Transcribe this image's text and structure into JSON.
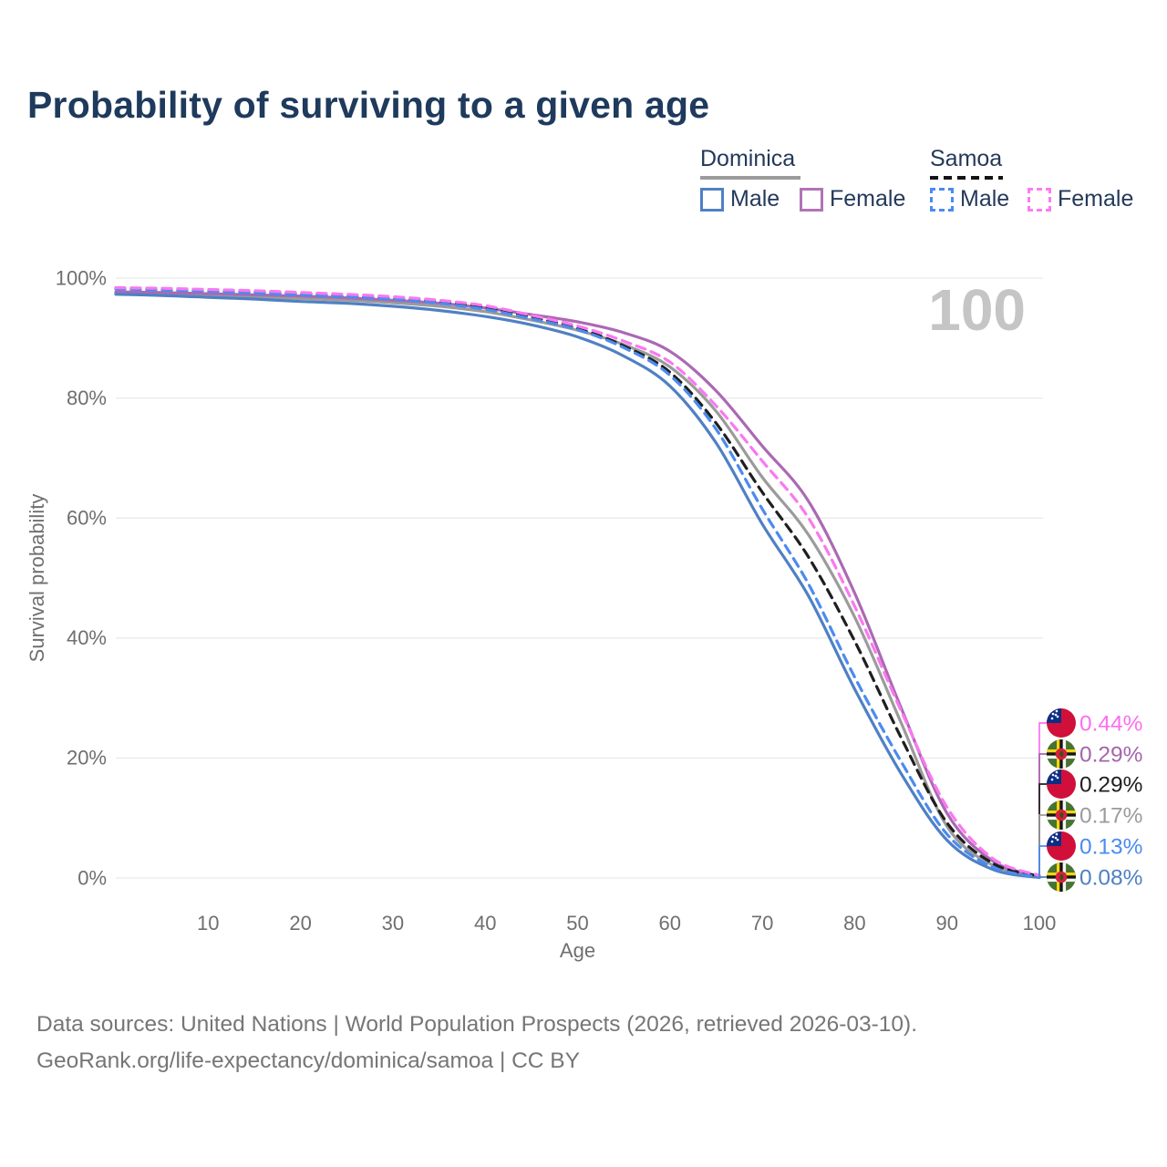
{
  "title": "Probability of surviving to a given age",
  "legend": {
    "groups": [
      {
        "label": "Dominica",
        "line_style": "solid",
        "underline_color": "#9b9b9b",
        "items": [
          {
            "label": "Male",
            "color": "#4f80c4",
            "dash": false
          },
          {
            "label": "Female",
            "color": "#b173b6",
            "dash": false
          }
        ]
      },
      {
        "label": "Samoa",
        "line_style": "dashed",
        "underline_color": "#141414",
        "items": [
          {
            "label": "Male",
            "color": "#4b8bf0",
            "dash": true
          },
          {
            "label": "Female",
            "color": "#fb7cf0",
            "dash": true
          }
        ]
      }
    ]
  },
  "chart_data": {
    "type": "line",
    "title": "Probability of surviving to a given age",
    "xlabel": "Age",
    "ylabel": "Survival probability",
    "xlim": [
      0,
      100
    ],
    "ylim": [
      0,
      100
    ],
    "grid": "horizontal",
    "x_ticks": [
      10,
      20,
      30,
      40,
      50,
      60,
      70,
      80,
      90,
      100
    ],
    "y_ticks": [
      "0%",
      "20%",
      "40%",
      "60%",
      "80%",
      "100%"
    ],
    "age_highlight": "100",
    "x": [
      0,
      5,
      10,
      15,
      20,
      25,
      30,
      35,
      40,
      45,
      50,
      55,
      60,
      65,
      70,
      75,
      80,
      85,
      90,
      95,
      100
    ],
    "series": [
      {
        "name": "Dominica",
        "color": "#9b9b9b",
        "dash": false,
        "values": [
          97.5,
          97.3,
          97.1,
          96.9,
          96.6,
          96.3,
          95.9,
          95.3,
          94.4,
          93.0,
          91.3,
          88.9,
          85.2,
          77.8,
          66.8,
          57.2,
          43.5,
          26.0,
          8.6,
          2.1,
          0.17
        ]
      },
      {
        "name": "Dominica Female",
        "color": "#ab69b3",
        "dash": false,
        "values": [
          97.7,
          97.6,
          97.4,
          97.2,
          97.0,
          96.7,
          96.3,
          95.8,
          95.0,
          93.9,
          92.7,
          90.9,
          87.8,
          81.2,
          72.0,
          62.8,
          47.5,
          28.5,
          10.8,
          2.8,
          0.29
        ]
      },
      {
        "name": "Dominica Male",
        "color": "#4f80c4",
        "dash": false,
        "values": [
          97.3,
          97.1,
          96.8,
          96.5,
          96.1,
          95.8,
          95.3,
          94.6,
          93.6,
          92.2,
          90.2,
          87.0,
          82.0,
          72.5,
          59.0,
          47.0,
          31.5,
          17.5,
          6.3,
          1.4,
          0.08
        ]
      },
      {
        "name": "Samoa",
        "color": "#1f1f1f",
        "dash": true,
        "values": [
          98.3,
          98.1,
          97.9,
          97.7,
          97.4,
          97.0,
          96.6,
          96.0,
          95.1,
          93.5,
          91.6,
          88.7,
          84.3,
          75.8,
          64.3,
          53.5,
          39.5,
          23.5,
          9.2,
          2.4,
          0.29
        ]
      },
      {
        "name": "Samoa Male",
        "color": "#4b8bf0",
        "dash": true,
        "values": [
          98.2,
          98.0,
          97.8,
          97.5,
          97.2,
          96.9,
          96.5,
          95.8,
          94.8,
          93.2,
          91.4,
          88.4,
          83.8,
          74.8,
          61.5,
          49.0,
          33.5,
          19.5,
          7.3,
          1.8,
          0.13
        ]
      },
      {
        "name": "Samoa Female",
        "color": "#fa78f0",
        "dash": true,
        "values": [
          98.4,
          98.3,
          98.1,
          97.9,
          97.6,
          97.3,
          96.9,
          96.3,
          95.4,
          93.8,
          92.0,
          89.5,
          86.0,
          78.7,
          69.5,
          60.0,
          45.3,
          28.0,
          11.8,
          3.2,
          0.44
        ]
      }
    ],
    "end_labels": [
      {
        "flag": "samoa",
        "text": "0.44%",
        "color": "#fb6ef2",
        "series": "Samoa Female"
      },
      {
        "flag": "dominica",
        "text": "0.29%",
        "color": "#a465ab",
        "series": "Dominica Female"
      },
      {
        "flag": "samoa",
        "text": "0.29%",
        "color": "#1f1f1f",
        "series": "Samoa"
      },
      {
        "flag": "dominica",
        "text": "0.17%",
        "color": "#9b9b9b",
        "series": "Dominica"
      },
      {
        "flag": "samoa",
        "text": "0.13%",
        "color": "#4b8bf0",
        "series": "Samoa Male"
      },
      {
        "flag": "dominica",
        "text": "0.08%",
        "color": "#4f80c4",
        "series": "Dominica Male"
      }
    ]
  },
  "footer": {
    "line1": "Data sources: United Nations | World Population Prospects (2026, retrieved 2026-03-10).",
    "line2": "GeoRank.org/life-expectancy/dominica/samoa | CC BY"
  }
}
